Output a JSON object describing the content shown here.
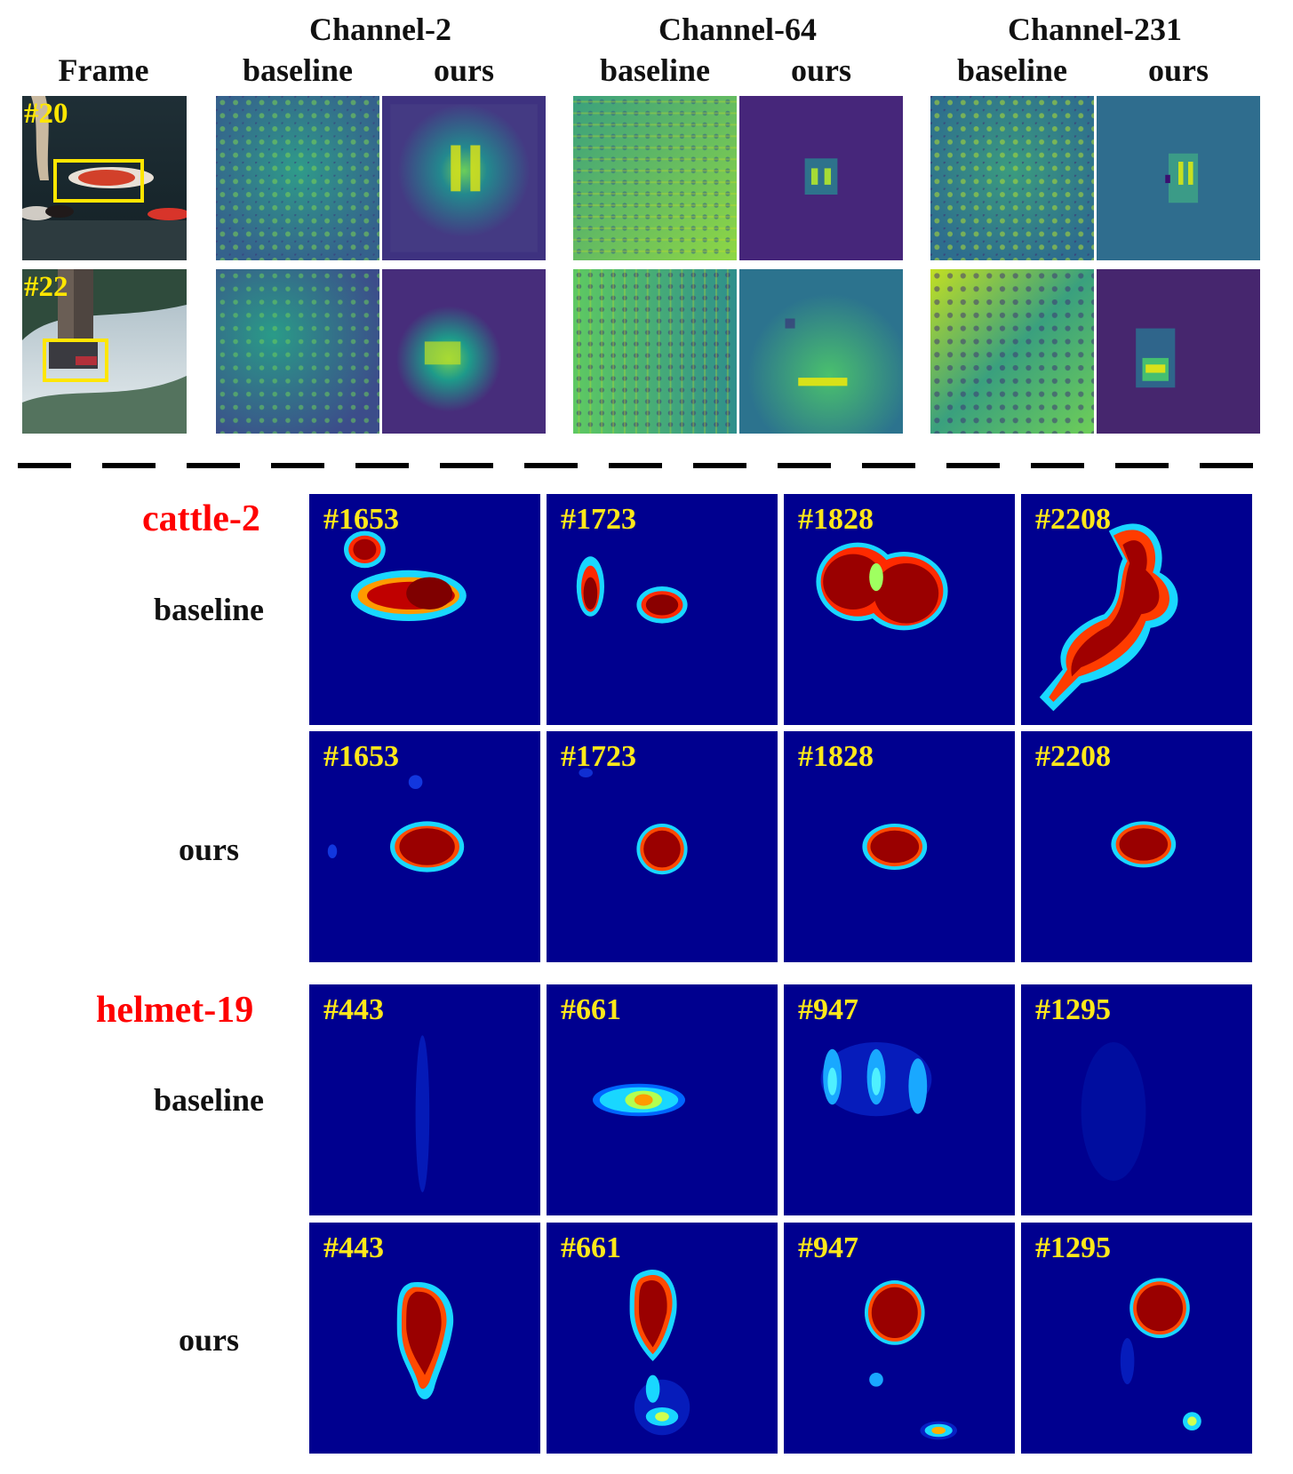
{
  "top_section": {
    "frame_header": "Frame",
    "channels": [
      {
        "title": "Channel-2",
        "col_labels": [
          "baseline",
          "ours"
        ]
      },
      {
        "title": "Channel-64",
        "col_labels": [
          "baseline",
          "ours"
        ]
      },
      {
        "title": "Channel-231",
        "col_labels": [
          "baseline",
          "ours"
        ]
      }
    ],
    "frames": [
      {
        "label": "#20"
      },
      {
        "label": "#22"
      }
    ]
  },
  "bottom_section": {
    "sequences": [
      {
        "name": "cattle-2",
        "rows": [
          {
            "label": "baseline",
            "frames": [
              "#1653",
              "#1723",
              "#1828",
              "#2208"
            ]
          },
          {
            "label": "ours",
            "frames": [
              "#1653",
              "#1723",
              "#1828",
              "#2208"
            ]
          }
        ]
      },
      {
        "name": "helmet-19",
        "rows": [
          {
            "label": "baseline",
            "frames": [
              "#443",
              "#661",
              "#947",
              "#1295"
            ]
          },
          {
            "label": "ours",
            "frames": [
              "#443",
              "#661",
              "#947",
              "#1295"
            ]
          }
        ]
      }
    ]
  },
  "colors": {
    "sequence_name": "#ff0000",
    "frame_label": "#ffe600",
    "jet_background": "#00008f",
    "viridis_dark": "#440154",
    "viridis_mid": "#21908d",
    "viridis_bright": "#fde725"
  }
}
